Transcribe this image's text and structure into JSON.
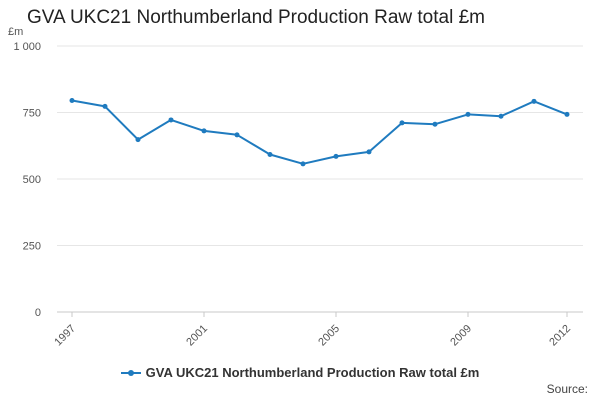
{
  "chart_data": {
    "type": "line",
    "title": "GVA UKC21 Northumberland Production Raw total £m",
    "ylabel": "£m",
    "xlabel": "",
    "x": [
      1997,
      1998,
      1999,
      2000,
      2001,
      2002,
      2003,
      2004,
      2005,
      2006,
      2007,
      2008,
      2009,
      2010,
      2011,
      2012
    ],
    "series": [
      {
        "name": "GVA UKC21 Northumberland Production Raw total £m",
        "values": [
          795,
          773,
          648,
          722,
          681,
          666,
          592,
          557,
          585,
          602,
          711,
          706,
          743,
          736,
          792,
          743
        ]
      }
    ],
    "x_tick_labels": [
      "1997",
      "2001",
      "2005",
      "2009",
      "2012"
    ],
    "y_tick_labels": [
      "0",
      "250",
      "500",
      "750",
      "1 000"
    ],
    "ylim": [
      0,
      1000
    ],
    "grid": "horizontal",
    "legend_position": "bottom",
    "series_color": "#1f7bbf",
    "source_label": "Source:"
  }
}
